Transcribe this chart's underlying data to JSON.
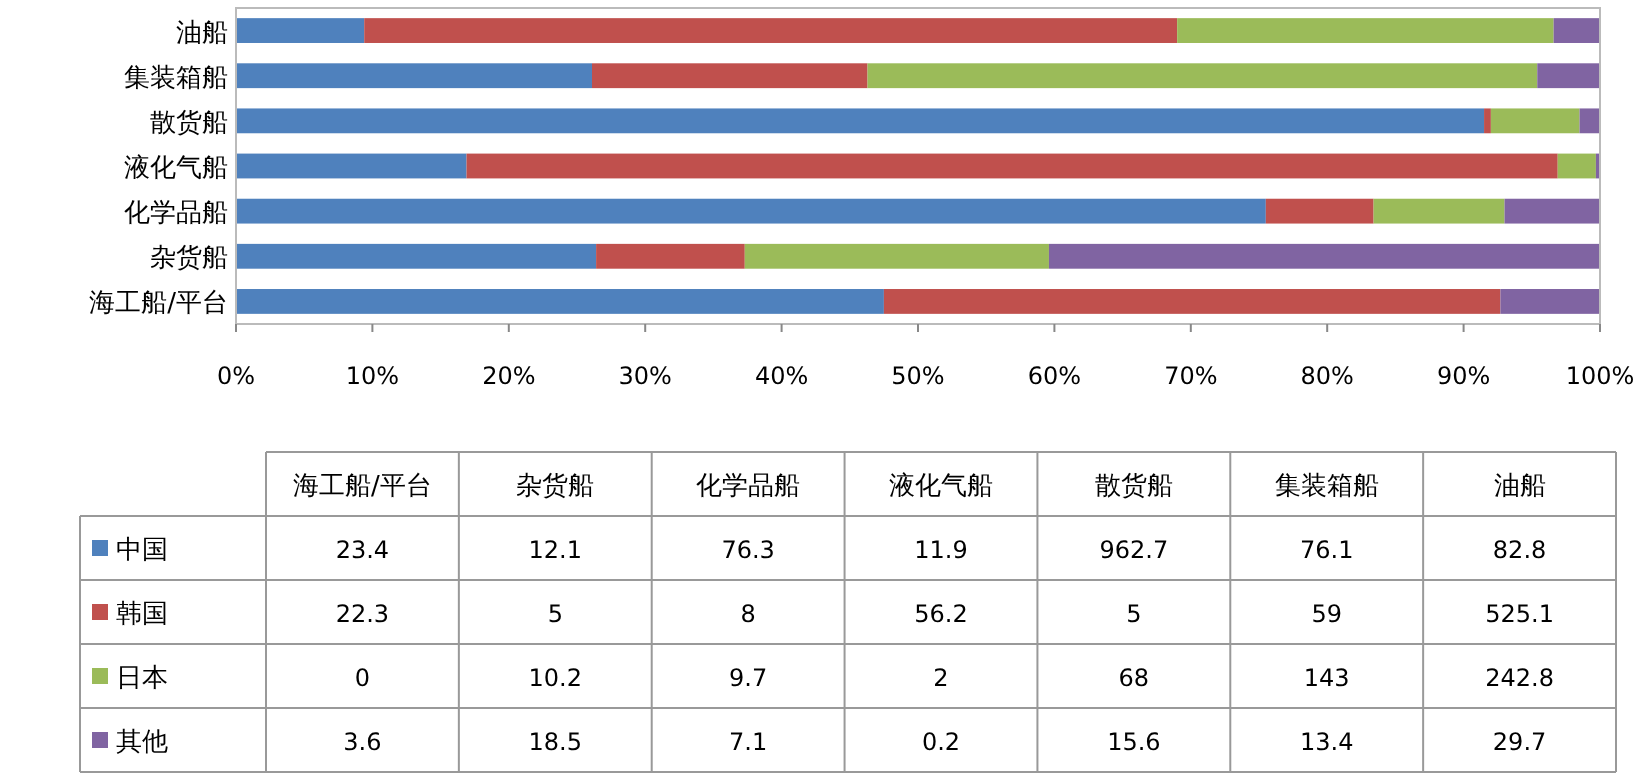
{
  "chart_data": [
    {
      "type": "bar",
      "orientation": "horizontal",
      "stacked": true,
      "categories": [
        "油船",
        "集装箱船",
        "散货船",
        "液化气船",
        "化学品船",
        "杂货船",
        "海工船/平台"
      ],
      "xlim": [
        0,
        100
      ],
      "xticks": [
        {
          "value": 0,
          "label": "0%"
        },
        {
          "value": 10,
          "label": "10%"
        },
        {
          "value": 20,
          "label": "20%"
        },
        {
          "value": 30,
          "label": "30%"
        },
        {
          "value": 40,
          "label": "40%"
        },
        {
          "value": 50,
          "label": "50%"
        },
        {
          "value": 60,
          "label": "60%"
        },
        {
          "value": 70,
          "label": "70%"
        },
        {
          "value": 80,
          "label": "80%"
        },
        {
          "value": 90,
          "label": "90%"
        },
        {
          "value": 100,
          "label": "100%"
        }
      ],
      "series": [
        {
          "color": "#4f81bd",
          "values": [
            9.4,
            26.1,
            91.5,
            16.9,
            75.5,
            26.4,
            47.5
          ]
        },
        {
          "color": "#c0504d",
          "values": [
            59.6,
            20.2,
            0.5,
            80.0,
            7.9,
            10.9,
            45.2
          ]
        },
        {
          "color": "#9bbb59",
          "values": [
            27.6,
            49.1,
            6.5,
            2.8,
            9.6,
            22.3,
            0
          ]
        },
        {
          "color": "#8064a2",
          "values": [
            3.4,
            4.6,
            1.5,
            0.3,
            7.0,
            40.4,
            7.3
          ]
        }
      ]
    },
    {
      "type": "heatmap",
      "data_labels": true,
      "categories": [
        "海工船/平台",
        "杂货船",
        "化学品船",
        "液化气船",
        "散货船",
        "集装箱船",
        "油船"
      ],
      "y_categories": [
        "中国",
        "韩国",
        "日本",
        "其他"
      ],
      "cells": [
        [
          23.4,
          12.1,
          76.3,
          11.9,
          962.7,
          76.1,
          82.8
        ],
        [
          22.3,
          5,
          8,
          56.2,
          5,
          59,
          525.1
        ],
        [
          0,
          10.2,
          9.7,
          2,
          68,
          143,
          242.8
        ],
        [
          3.6,
          18.5,
          7.1,
          0.2,
          15.6,
          13.4,
          29.7
        ]
      ]
    }
  ]
}
